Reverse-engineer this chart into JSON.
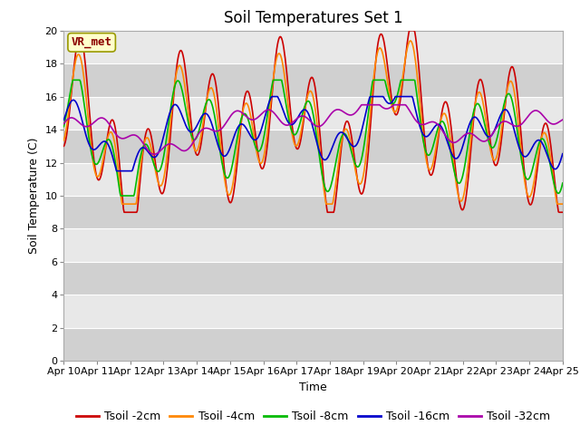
{
  "title": "Soil Temperatures Set 1",
  "xlabel": "Time",
  "ylabel": "Soil Temperature (C)",
  "annotation": "VR_met",
  "ylim": [
    0,
    20
  ],
  "yticks": [
    0,
    2,
    4,
    6,
    8,
    10,
    12,
    14,
    16,
    18,
    20
  ],
  "xtick_labels": [
    "Apr 10",
    "Apr 11",
    "Apr 12",
    "Apr 13",
    "Apr 14",
    "Apr 15",
    "Apr 16",
    "Apr 17",
    "Apr 18",
    "Apr 19",
    "Apr 20",
    "Apr 21",
    "Apr 22",
    "Apr 23",
    "Apr 24",
    "Apr 25"
  ],
  "series_names": [
    "Tsoil -2cm",
    "Tsoil -4cm",
    "Tsoil -8cm",
    "Tsoil -16cm",
    "Tsoil -32cm"
  ],
  "series_colors": [
    "#cc0000",
    "#ff8800",
    "#00bb00",
    "#0000cc",
    "#aa00aa"
  ],
  "lw": 1.2,
  "bg_color": "#dcdcdc",
  "fig_bg": "#ffffff",
  "band_color_dark": "#d0d0d0",
  "band_color_light": "#e8e8e8",
  "title_fontsize": 12,
  "axis_fontsize": 9,
  "tick_fontsize": 8,
  "legend_fontsize": 9
}
